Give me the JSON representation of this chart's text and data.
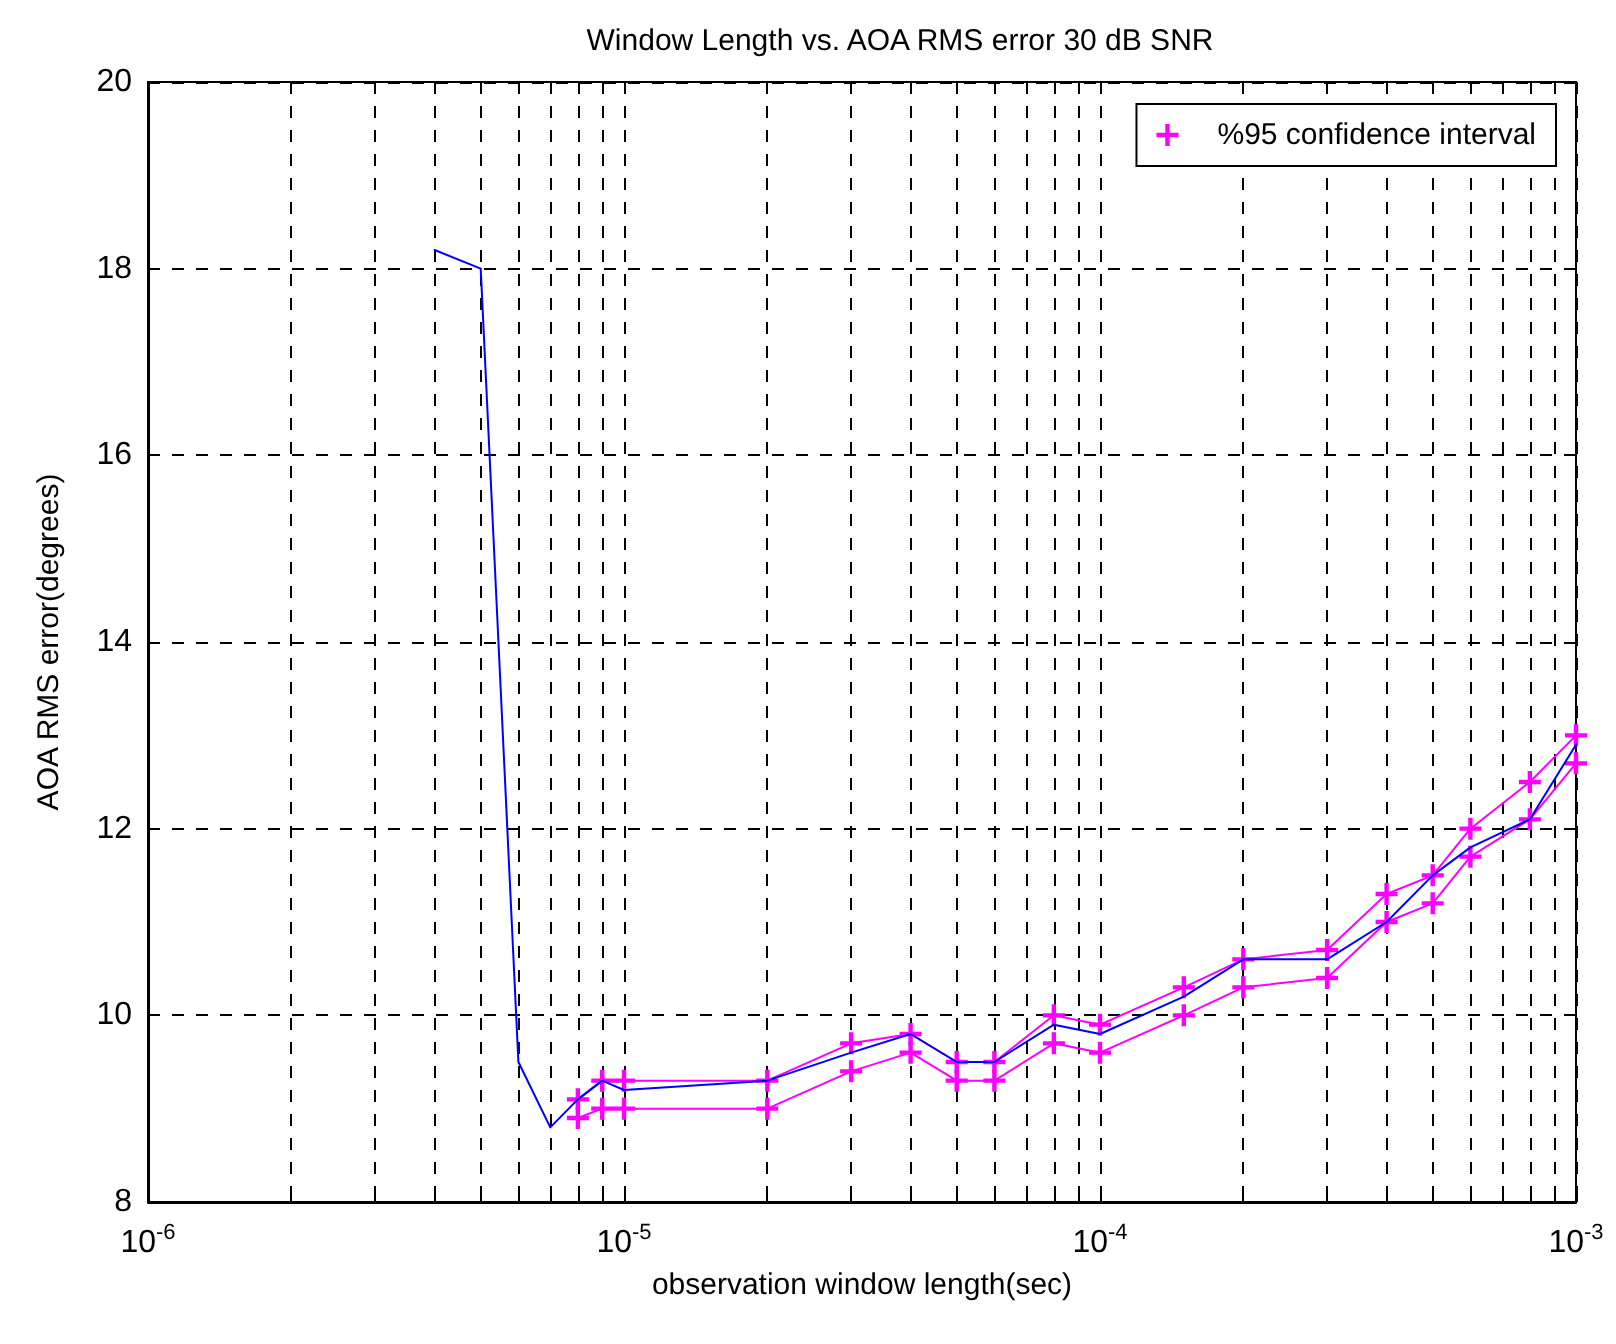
{
  "chart_data": {
    "type": "line",
    "title": "Window Length vs. AOA RMS error 30 dB SNR",
    "xlabel": "observation window length(sec)",
    "ylabel": "AOA RMS error(degrees)",
    "log": "x",
    "xlim": [
      1e-06,
      0.001
    ],
    "xticks": [
      {
        "value": 1e-06,
        "label": "10$^{-6}$"
      },
      {
        "value": 2e-06,
        "label": null
      },
      {
        "value": 3e-06,
        "label": null
      },
      {
        "value": 4e-06,
        "label": null
      },
      {
        "value": 5e-06,
        "label": null
      },
      {
        "value": 6e-06,
        "label": null
      },
      {
        "value": 7e-06,
        "label": null
      },
      {
        "value": 8e-06,
        "label": null
      },
      {
        "value": 9e-06,
        "label": null
      },
      {
        "value": 1e-05,
        "label": "10$^{-5}$"
      },
      {
        "value": 2e-05,
        "label": null
      },
      {
        "value": 3e-05,
        "label": null
      },
      {
        "value": 4e-05,
        "label": null
      },
      {
        "value": 5e-05,
        "label": null
      },
      {
        "value": 6e-05,
        "label": null
      },
      {
        "value": 7e-05,
        "label": null
      },
      {
        "value": 8e-05,
        "label": null
      },
      {
        "value": 9e-05,
        "label": null
      },
      {
        "value": 0.0001,
        "label": "10$^{-4}$"
      },
      {
        "value": 0.0002,
        "label": null
      },
      {
        "value": 0.0003,
        "label": null
      },
      {
        "value": 0.0004,
        "label": null
      },
      {
        "value": 0.0005,
        "label": null
      },
      {
        "value": 0.0006,
        "label": null
      },
      {
        "value": 0.0007,
        "label": null
      },
      {
        "value": 0.0008,
        "label": null
      },
      {
        "value": 0.0009,
        "label": null
      },
      {
        "value": 0.001,
        "label": "10$^{-3}$"
      }
    ],
    "ylim": [
      8,
      20
    ],
    "yticks": [
      8,
      10,
      12,
      14,
      16,
      18,
      20
    ],
    "grid": true,
    "legend": "top right",
    "line_style": "solid",
    "series": [
      {
        "color": "#0000ff",
        "marker": "none",
        "x": [
          4e-06,
          5e-06,
          6e-06,
          7e-06,
          8e-06,
          9e-06,
          1e-05,
          2e-05,
          3e-05,
          4e-05,
          5e-05,
          6e-05,
          8e-05,
          0.0001,
          0.00015,
          0.0002,
          0.0003,
          0.0004,
          0.0005,
          0.0006,
          0.0008,
          0.001
        ],
        "values": [
          18.2,
          18.0,
          9.5,
          8.8,
          9.1,
          9.3,
          9.2,
          9.3,
          9.6,
          9.8,
          9.5,
          9.5,
          9.9,
          9.8,
          10.2,
          10.6,
          10.6,
          11.0,
          11.5,
          11.8,
          12.1,
          12.9
        ]
      },
      {
        "name": "%95 confidence interval",
        "color": "#ff00ff",
        "marker": "cross",
        "x": [
          8e-06,
          9e-06,
          1e-05,
          2e-05,
          3e-05,
          4e-05,
          5e-05,
          6e-05,
          8e-05,
          0.0001,
          0.00015,
          0.0002,
          0.0003,
          0.0004,
          0.0005,
          0.0006,
          0.0008,
          0.001
        ],
        "values": [
          9.1,
          9.3,
          9.3,
          9.3,
          9.7,
          9.8,
          9.5,
          9.5,
          10.0,
          9.9,
          10.3,
          10.6,
          10.7,
          11.3,
          11.5,
          12.0,
          12.5,
          13.0
        ]
      },
      {
        "color": "#ff00ff",
        "marker": "cross",
        "x": [
          8e-06,
          9e-06,
          1e-05,
          2e-05,
          3e-05,
          4e-05,
          5e-05,
          6e-05,
          8e-05,
          0.0001,
          0.00015,
          0.0002,
          0.0003,
          0.0004,
          0.0005,
          0.0006,
          0.0008,
          0.001
        ],
        "values": [
          8.9,
          9.0,
          9.0,
          9.0,
          9.4,
          9.6,
          9.3,
          9.3,
          9.7,
          9.6,
          10.0,
          10.3,
          10.4,
          11.0,
          11.2,
          11.7,
          12.1,
          12.7
        ]
      }
    ]
  }
}
